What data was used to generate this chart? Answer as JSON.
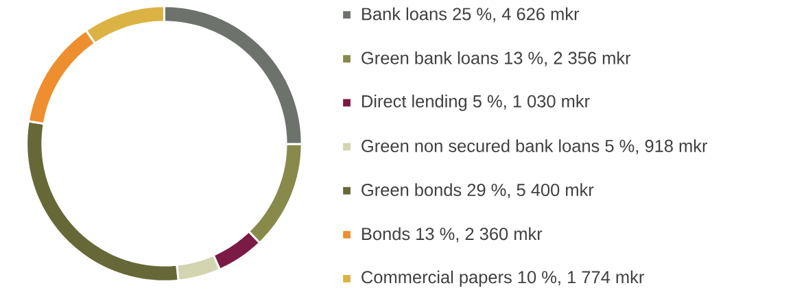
{
  "chart_data": {
    "type": "donut",
    "categories": [
      "Bank loans 25 %, 4 626 mkr",
      "Green bank loans 13 %, 2 356 mkr",
      "Direct lending 5 %, 1 030 mkr",
      "Green non secured bank loans 5 %, 918 mkr",
      "Green bonds 29 %, 5 400 mkr",
      "Bonds 13 %, 2 360 mkr",
      "Commercial papers 10 %, 1 774 mkr"
    ],
    "values": [
      4626,
      2356,
      1030,
      918,
      5400,
      2360,
      1774
    ],
    "colors": [
      "#6d726c",
      "#878a4a",
      "#7b1a44",
      "#d3d4b0",
      "#666837",
      "#ef8e2e",
      "#dbb345"
    ],
    "legend": "right"
  }
}
